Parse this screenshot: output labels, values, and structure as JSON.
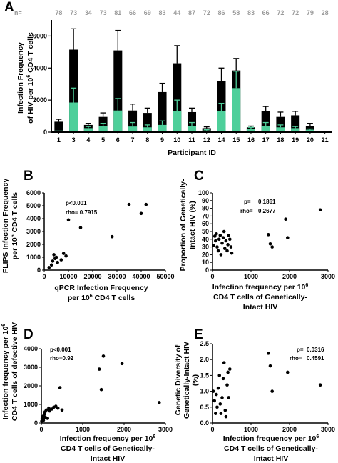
{
  "colors": {
    "total": "#000000",
    "intact": "#4ecf9a",
    "n_text": "#9a9a9a",
    "point": "#000000"
  },
  "chart_data": [
    {
      "id": "A",
      "type": "bar",
      "panel_label": "A",
      "n_prefix": "n=",
      "categories": [
        "1",
        "3",
        "4",
        "5",
        "6",
        "7",
        "8",
        "9",
        "10",
        "11",
        "12",
        "14",
        "15",
        "16",
        "17",
        "18",
        "19",
        "20",
        "21"
      ],
      "n_values": [
        "78",
        "73",
        "34",
        "73",
        "81",
        "66",
        "69",
        "83",
        "44",
        "87",
        "72",
        "86",
        "58",
        "83",
        "66",
        "72",
        "72",
        "79",
        "28"
      ],
      "series": [
        {
          "role": "total",
          "values": [
            650,
            5150,
            450,
            950,
            5100,
            1350,
            1200,
            2500,
            4300,
            1250,
            250,
            3200,
            3850,
            300,
            1300,
            950,
            1050,
            400,
            0
          ],
          "errors": [
            150,
            1300,
            100,
            250,
            1250,
            400,
            300,
            550,
            1100,
            250,
            80,
            800,
            750,
            80,
            300,
            300,
            250,
            150,
            0
          ]
        },
        {
          "role": "intact",
          "values": [
            100,
            1850,
            250,
            400,
            1350,
            350,
            300,
            450,
            1300,
            400,
            100,
            1300,
            2750,
            200,
            400,
            300,
            250,
            150,
            0
          ],
          "errors": [
            0,
            900,
            100,
            150,
            750,
            250,
            150,
            250,
            700,
            200,
            50,
            500,
            1050,
            100,
            200,
            150,
            100,
            50,
            0
          ]
        }
      ],
      "y_ticks": [
        "0",
        "2000",
        "4000",
        "6000"
      ],
      "ylim": [
        0,
        7000
      ],
      "ylabel_lines": [
        "Infection Frequency",
        "of HIV per 10",
        "6",
        " CD4 T cells"
      ],
      "xlabel": "Participant ID"
    },
    {
      "id": "B",
      "type": "scatter",
      "panel_label": "B",
      "x": [
        2000,
        3000,
        3500,
        4000,
        4500,
        5000,
        5500,
        7000,
        8000,
        9000,
        10000,
        15000,
        28000,
        35000,
        40000,
        42000
      ],
      "y": [
        200,
        400,
        700,
        1200,
        900,
        1000,
        600,
        800,
        1300,
        1100,
        3900,
        3300,
        2600,
        5100,
        4400,
        5100
      ],
      "xlim": [
        0,
        50000
      ],
      "ylim": [
        0,
        6000
      ],
      "x_ticks": [
        "0",
        "10000",
        "20000",
        "30000",
        "40000",
        "50000"
      ],
      "y_ticks": [
        "0",
        "1000",
        "2000",
        "3000",
        "4000",
        "5000",
        "6000"
      ],
      "stats": [
        "p<0.001",
        "rho= 0.7915"
      ],
      "xlabel_lines": [
        "qPCR Infection Frequency",
        "per 10",
        "6",
        " CD4 T cells"
      ],
      "ylabel_lines": [
        "FLIPS Infection Frequency",
        "per 10",
        "6",
        " CD4 T cells"
      ]
    },
    {
      "id": "C",
      "type": "scatter",
      "panel_label": "C",
      "x": [
        30,
        60,
        80,
        100,
        120,
        150,
        170,
        200,
        220,
        250,
        280,
        300,
        320,
        350,
        380,
        400,
        420,
        450,
        480,
        500,
        1450,
        1500,
        1550,
        1900,
        1950,
        2800
      ],
      "y": [
        32,
        44,
        38,
        47,
        30,
        25,
        40,
        45,
        20,
        35,
        42,
        50,
        28,
        38,
        25,
        33,
        45,
        40,
        30,
        22,
        46,
        34,
        30,
        66,
        42,
        78
      ],
      "xlim": [
        0,
        3000
      ],
      "ylim": [
        0,
        100
      ],
      "x_ticks": [
        "0",
        "1000",
        "2000",
        "3000"
      ],
      "y_ticks": [
        "0",
        "10",
        "20",
        "30",
        "40",
        "50",
        "60",
        "70",
        "80",
        "90",
        "100"
      ],
      "stats": [
        "p=",
        "0.1861",
        "rho=",
        "0.2677"
      ],
      "xlabel_lines": [
        "Infection frequency per 10",
        "6",
        "CD4 T cells of Genetically-",
        "Intact HIV"
      ],
      "ylabel_lines": [
        "Proportion of Genetically-",
        "Intact HIV (%)"
      ]
    },
    {
      "id": "D",
      "type": "scatter",
      "panel_label": "D",
      "x": [
        10,
        20,
        30,
        40,
        50,
        60,
        70,
        80,
        90,
        100,
        120,
        150,
        180,
        200,
        250,
        300,
        350,
        400,
        450,
        500,
        1400,
        1450,
        1500,
        1950,
        2850
      ],
      "y": [
        100,
        250,
        200,
        350,
        150,
        400,
        300,
        500,
        600,
        300,
        700,
        250,
        800,
        650,
        750,
        850,
        900,
        800,
        1900,
        700,
        2900,
        1800,
        3600,
        3200,
        1100
      ],
      "xlim": [
        0,
        3000
      ],
      "ylim": [
        0,
        4000
      ],
      "x_ticks": [
        "0",
        "1000",
        "2000",
        "3000"
      ],
      "y_ticks": [
        "0",
        "1000",
        "2000",
        "3000",
        "4000"
      ],
      "stats": [
        "p<0.001",
        "rho=0.92"
      ],
      "xlabel_lines": [
        "Infection frequency per 10",
        "6",
        "CD4 T cells of Genetically-",
        "Intact HIV"
      ],
      "ylabel_lines": [
        "Infection frequency per 10",
        "6",
        "CD4 T cells of defective HIV"
      ]
    },
    {
      "id": "E",
      "type": "scatter",
      "panel_label": "E",
      "x": [
        20,
        50,
        80,
        100,
        120,
        150,
        180,
        200,
        220,
        250,
        280,
        300,
        330,
        350,
        380,
        400,
        420,
        450,
        1450,
        1500,
        1550,
        1950,
        2800
      ],
      "y": [
        1.0,
        0.7,
        0.3,
        0.9,
        0.5,
        1.1,
        1.5,
        0.6,
        0.3,
        0.8,
        1.4,
        1.9,
        0.4,
        0.2,
        1.2,
        1.6,
        0.8,
        1.7,
        2.2,
        1.8,
        1.0,
        1.6,
        1.2
      ],
      "xlim": [
        0,
        3000
      ],
      "ylim": [
        0,
        2.5
      ],
      "x_ticks": [
        "0",
        "1000",
        "2000",
        "3000"
      ],
      "y_ticks": [
        "0.0",
        "0.5",
        "1.0",
        "1.5",
        "2.0",
        "2.5"
      ],
      "stats": [
        "p=",
        "0.0316",
        "rho=",
        "0.4591"
      ],
      "xlabel_lines": [
        "Infection frequency per 10",
        "6",
        "CD4 T cells of Genetically-",
        "Intact HIV"
      ],
      "ylabel_lines": [
        "Genetic Diversity of",
        "Genetically-Intact HIV",
        "(%)"
      ]
    }
  ]
}
